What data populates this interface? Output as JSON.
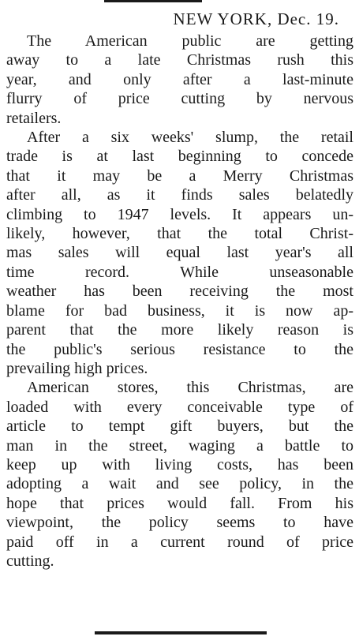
{
  "article": {
    "dateline": "NEW YORK, Dec. 19.",
    "paragraphs": [
      {
        "lines": [
          "The American public are getting",
          "away to a late Christmas rush this",
          "year, and only after a last-minute",
          "flurry of price cutting by nervous",
          "retailers."
        ]
      },
      {
        "lines": [
          "After a six weeks' slump, the retail",
          "trade is at last beginning to concede",
          "that it may be a Merry Christmas",
          "after all, as it finds sales belatedly",
          "climbing to 1947 levels. It appears un-",
          "likely, however, that the total Christ-",
          "mas sales will equal last year's all",
          "time record. While unseasonable",
          "weather has been receiving the most",
          "blame for bad business, it is now ap-",
          "parent that the more likely reason is",
          "the public's serious resistance to the",
          "prevailing high prices."
        ]
      },
      {
        "lines": [
          "American stores, this Christmas, are",
          "loaded with every conceivable type of",
          "article to tempt gift buyers, but the",
          "man in the street, waging a battle to",
          "keep up with living costs, has been",
          "adopting a wait and see policy, in the",
          "hope that prices would fall. From his",
          "viewpoint, the policy seems to have",
          "paid off in a current round of price",
          "cutting."
        ]
      }
    ]
  }
}
